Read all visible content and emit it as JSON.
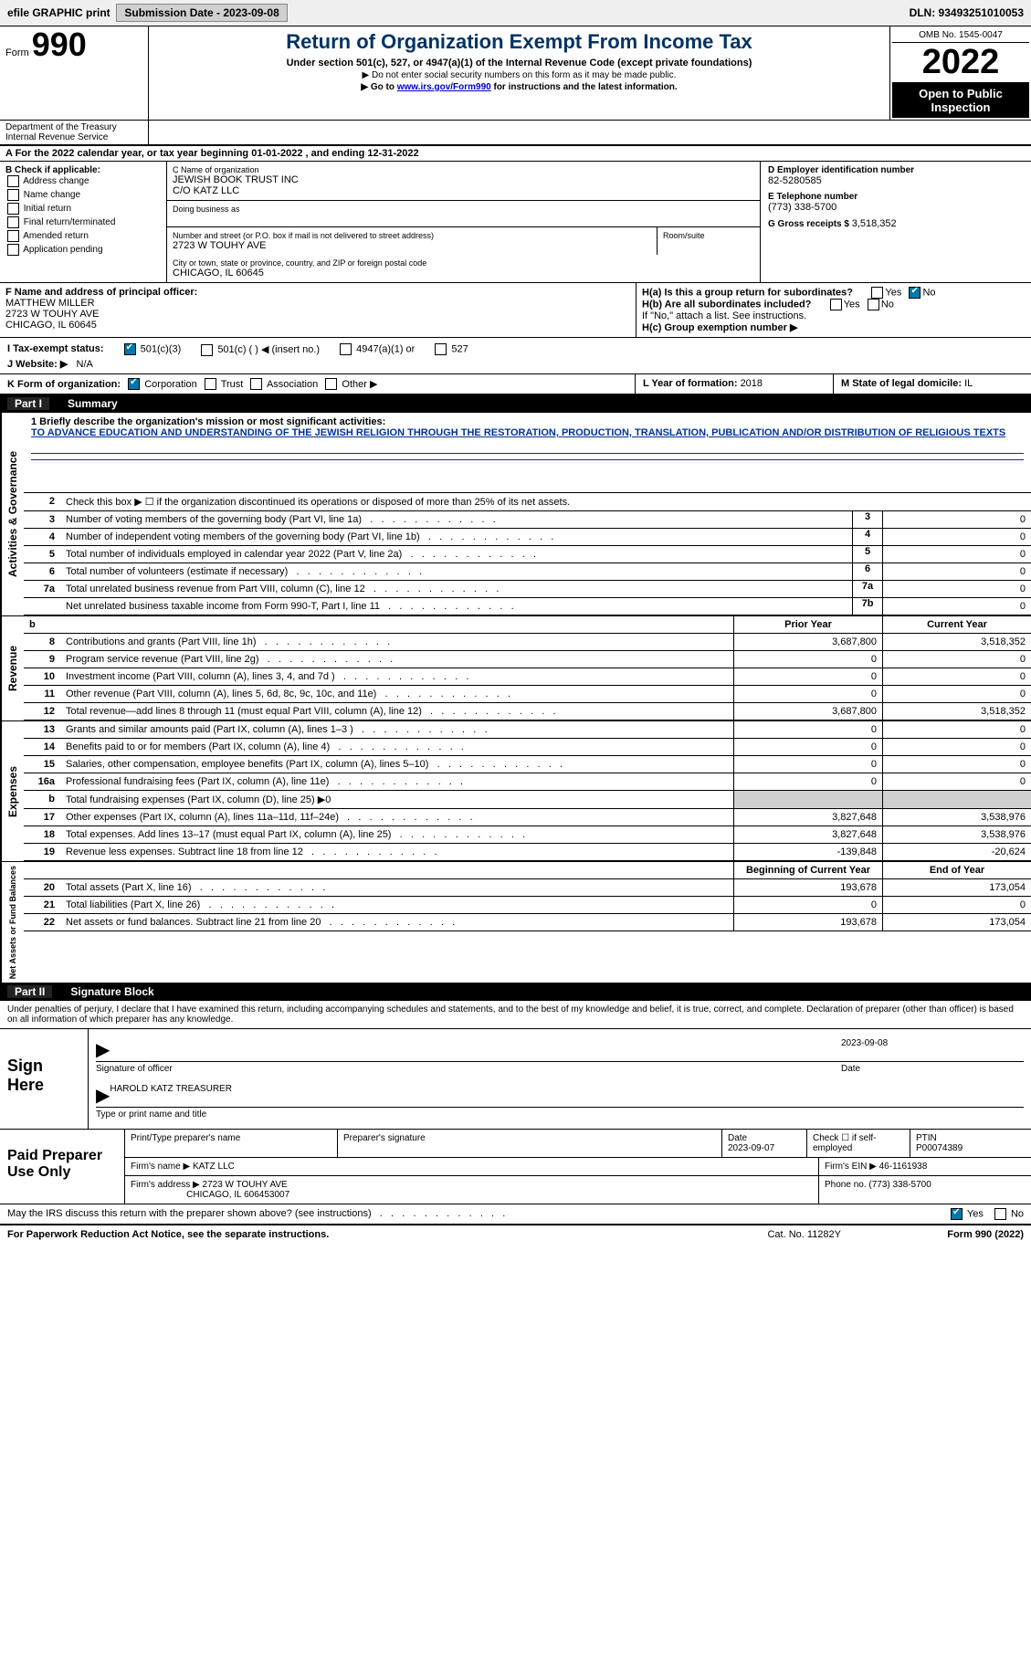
{
  "colors": {
    "header_blue": "#003366",
    "link_blue": "#0000cc",
    "mission_blue": "#003399",
    "black": "#000000",
    "gray_bg": "#d0d0d0"
  },
  "topbar": {
    "efile": "efile GRAPHIC print",
    "submission_label": "Submission Date - 2023-09-08",
    "dln": "DLN: 93493251010053"
  },
  "header": {
    "form": "Form",
    "form990": "990",
    "dept": "Department of the Treasury",
    "irs": "Internal Revenue Service",
    "title": "Return of Organization Exempt From Income Tax",
    "sub1": "Under section 501(c), 527, or 4947(a)(1) of the Internal Revenue Code (except private foundations)",
    "sub2": "▶ Do not enter social security numbers on this form as it may be made public.",
    "sub3_pre": "▶ Go to ",
    "sub3_link": "www.irs.gov/Form990",
    "sub3_post": " for instructions and the latest information.",
    "omb": "OMB No. 1545-0047",
    "year": "2022",
    "open_public": "Open to Public Inspection"
  },
  "period": {
    "text_a": "A For the 2022 calendar year, or tax year beginning ",
    "begin": "01-01-2022",
    "text_b": "   , and ending ",
    "end": "12-31-2022"
  },
  "section_b": {
    "header": "B Check if applicable:",
    "items": [
      "Address change",
      "Name change",
      "Initial return",
      "Final return/terminated",
      "Amended return",
      "Application pending"
    ]
  },
  "section_c": {
    "name_label": "C Name of organization",
    "name1": "JEWISH BOOK TRUST INC",
    "name2": "C/O KATZ LLC",
    "dba_label": "Doing business as",
    "dba": "",
    "street_label": "Number and street (or P.O. box if mail is not delivered to street address)",
    "street": "2723 W TOUHY AVE",
    "room_label": "Room/suite",
    "room": "",
    "city_label": "City or town, state or province, country, and ZIP or foreign postal code",
    "city": "CHICAGO, IL  60645"
  },
  "section_d": {
    "label": "D Employer identification number",
    "val": "82-5280585"
  },
  "section_e": {
    "label": "E Telephone number",
    "val": "(773) 338-5700"
  },
  "section_g": {
    "label": "G Gross receipts $ ",
    "val": "3,518,352"
  },
  "officer": {
    "label": "F   Name and address of principal officer:",
    "name": "MATTHEW MILLER",
    "addr1": "2723 W TOUHY AVE",
    "addr2": "CHICAGO, IL  60645"
  },
  "section_h": {
    "ha": "H(a)   Is this a group return for subordinates?",
    "ha_no_checked": true,
    "hb": "H(b)   Are all subordinates included?",
    "hb_note": "If \"No,\" attach a list. See instructions.",
    "hc": "H(c)   Group exemption number ▶",
    "yes": "Yes",
    "no": "No"
  },
  "tax_status": {
    "label": "I   Tax-exempt status:",
    "opt_501c3": "501(c)(3)",
    "opt_501c": "501(c) (  ) ◀ (insert no.)",
    "opt_4947": "4947(a)(1) or",
    "opt_527": "527"
  },
  "website": {
    "label": "J   Website: ▶",
    "val": "N/A"
  },
  "form_org": {
    "label": "K Form of organization:",
    "corp": "Corporation",
    "trust": "Trust",
    "assoc": "Association",
    "other": "Other ▶"
  },
  "year_formed": {
    "label": "L Year of formation: ",
    "val": "2018"
  },
  "domicile": {
    "label": "M State of legal domicile: ",
    "val": "IL"
  },
  "part1": {
    "header": "Part I",
    "title": "Summary"
  },
  "vlabels": {
    "act": "Activities & Governance",
    "rev": "Revenue",
    "exp": "Expenses",
    "net": "Net Assets or Fund Balances"
  },
  "mission": {
    "q": "1   Briefly describe the organization's mission or most significant activities:",
    "text": "TO ADVANCE EDUCATION AND UNDERSTANDING OF THE JEWISH RELIGION THROUGH THE RESTORATION, PRODUCTION, TRANSLATION, PUBLICATION AND/OR DISTRIBUTION OF RELIGIOUS TEXTS"
  },
  "lines_gov": [
    {
      "n": "2",
      "d": "Check this box ▶ ☐  if the organization discontinued its operations or disposed of more than 25% of its net assets.",
      "noval": true
    },
    {
      "n": "3",
      "d": "Number of voting members of the governing body (Part VI, line 1a)",
      "b": "3",
      "v": "0"
    },
    {
      "n": "4",
      "d": "Number of independent voting members of the governing body (Part VI, line 1b)",
      "b": "4",
      "v": "0"
    },
    {
      "n": "5",
      "d": "Total number of individuals employed in calendar year 2022 (Part V, line 2a)",
      "b": "5",
      "v": "0"
    },
    {
      "n": "6",
      "d": "Total number of volunteers (estimate if necessary)",
      "b": "6",
      "v": "0"
    },
    {
      "n": "7a",
      "d": "Total unrelated business revenue from Part VIII, column (C), line 12",
      "b": "7a",
      "v": "0"
    },
    {
      "n": "",
      "d": "Net unrelated business taxable income from Form 990-T, Part I, line 11",
      "b": "7b",
      "v": "0"
    }
  ],
  "col_headers": {
    "b": "b",
    "prior": "Prior Year",
    "curr": "Current Year"
  },
  "lines_rev": [
    {
      "n": "8",
      "d": "Contributions and grants (Part VIII, line 1h)",
      "p": "3,687,800",
      "c": "3,518,352"
    },
    {
      "n": "9",
      "d": "Program service revenue (Part VIII, line 2g)",
      "p": "0",
      "c": "0"
    },
    {
      "n": "10",
      "d": "Investment income (Part VIII, column (A), lines 3, 4, and 7d )",
      "p": "0",
      "c": "0"
    },
    {
      "n": "11",
      "d": "Other revenue (Part VIII, column (A), lines 5, 6d, 8c, 9c, 10c, and 11e)",
      "p": "0",
      "c": "0"
    },
    {
      "n": "12",
      "d": "Total revenue—add lines 8 through 11 (must equal Part VIII, column (A), line 12)",
      "p": "3,687,800",
      "c": "3,518,352"
    }
  ],
  "lines_exp": [
    {
      "n": "13",
      "d": "Grants and similar amounts paid (Part IX, column (A), lines 1–3 )",
      "p": "0",
      "c": "0"
    },
    {
      "n": "14",
      "d": "Benefits paid to or for members (Part IX, column (A), line 4)",
      "p": "0",
      "c": "0"
    },
    {
      "n": "15",
      "d": "Salaries, other compensation, employee benefits (Part IX, column (A), lines 5–10)",
      "p": "0",
      "c": "0"
    },
    {
      "n": "16a",
      "d": "Professional fundraising fees (Part IX, column (A), line 11e)",
      "p": "0",
      "c": "0"
    },
    {
      "n": "b",
      "d": "Total fundraising expenses (Part IX, column (D), line 25) ▶0",
      "gray": true
    },
    {
      "n": "17",
      "d": "Other expenses (Part IX, column (A), lines 11a–11d, 11f–24e)",
      "p": "3,827,648",
      "c": "3,538,976"
    },
    {
      "n": "18",
      "d": "Total expenses. Add lines 13–17 (must equal Part IX, column (A), line 25)",
      "p": "3,827,648",
      "c": "3,538,976"
    },
    {
      "n": "19",
      "d": "Revenue less expenses. Subtract line 18 from line 12",
      "p": "-139,848",
      "c": "-20,624"
    }
  ],
  "col_headers2": {
    "begin": "Beginning of Current Year",
    "end": "End of Year"
  },
  "lines_net": [
    {
      "n": "20",
      "d": "Total assets (Part X, line 16)",
      "p": "193,678",
      "c": "173,054"
    },
    {
      "n": "21",
      "d": "Total liabilities (Part X, line 26)",
      "p": "0",
      "c": "0"
    },
    {
      "n": "22",
      "d": "Net assets or fund balances. Subtract line 21 from line 20",
      "p": "193,678",
      "c": "173,054"
    }
  ],
  "part2": {
    "header": "Part II",
    "title": "Signature Block"
  },
  "sign_decl": "Under penalties of perjury, I declare that I have examined this return, including accompanying schedules and statements, and to the best of my knowledge and belief, it is true, correct, and complete. Declaration of preparer (other than officer) is based on all information of which preparer has any knowledge.",
  "sign": {
    "here": "Sign Here",
    "sig_officer": "Signature of officer",
    "date": "2023-09-08",
    "date_label": "Date",
    "name_title": "HAROLD KATZ  TREASURER",
    "type_name": "Type or print name and title"
  },
  "paid": {
    "label": "Paid Preparer Use Only",
    "print_name_label": "Print/Type preparer's name",
    "print_name": "",
    "sig_label": "Preparer's signature",
    "date_label": "Date",
    "date": "2023-09-07",
    "check_label": "Check ☐ if self-employed",
    "ptin_label": "PTIN",
    "ptin": "P00074389",
    "firm_name_label": "Firm's name     ▶",
    "firm_name": "KATZ LLC",
    "firm_ein_label": "Firm's EIN ▶",
    "firm_ein": "46-1161938",
    "firm_addr_label": "Firm's address ▶",
    "firm_addr1": "2723 W TOUHY AVE",
    "firm_addr2": "CHICAGO, IL  606453007",
    "phone_label": "Phone no. ",
    "phone": "(773) 338-5700"
  },
  "may_irs": {
    "text": "May the IRS discuss this return with the preparer shown above? (see instructions)",
    "yes": "Yes",
    "no": "No"
  },
  "footer": {
    "pra": "For Paperwork Reduction Act Notice, see the separate instructions.",
    "cat": "Cat. No. 11282Y",
    "form": "Form 990 (2022)"
  }
}
